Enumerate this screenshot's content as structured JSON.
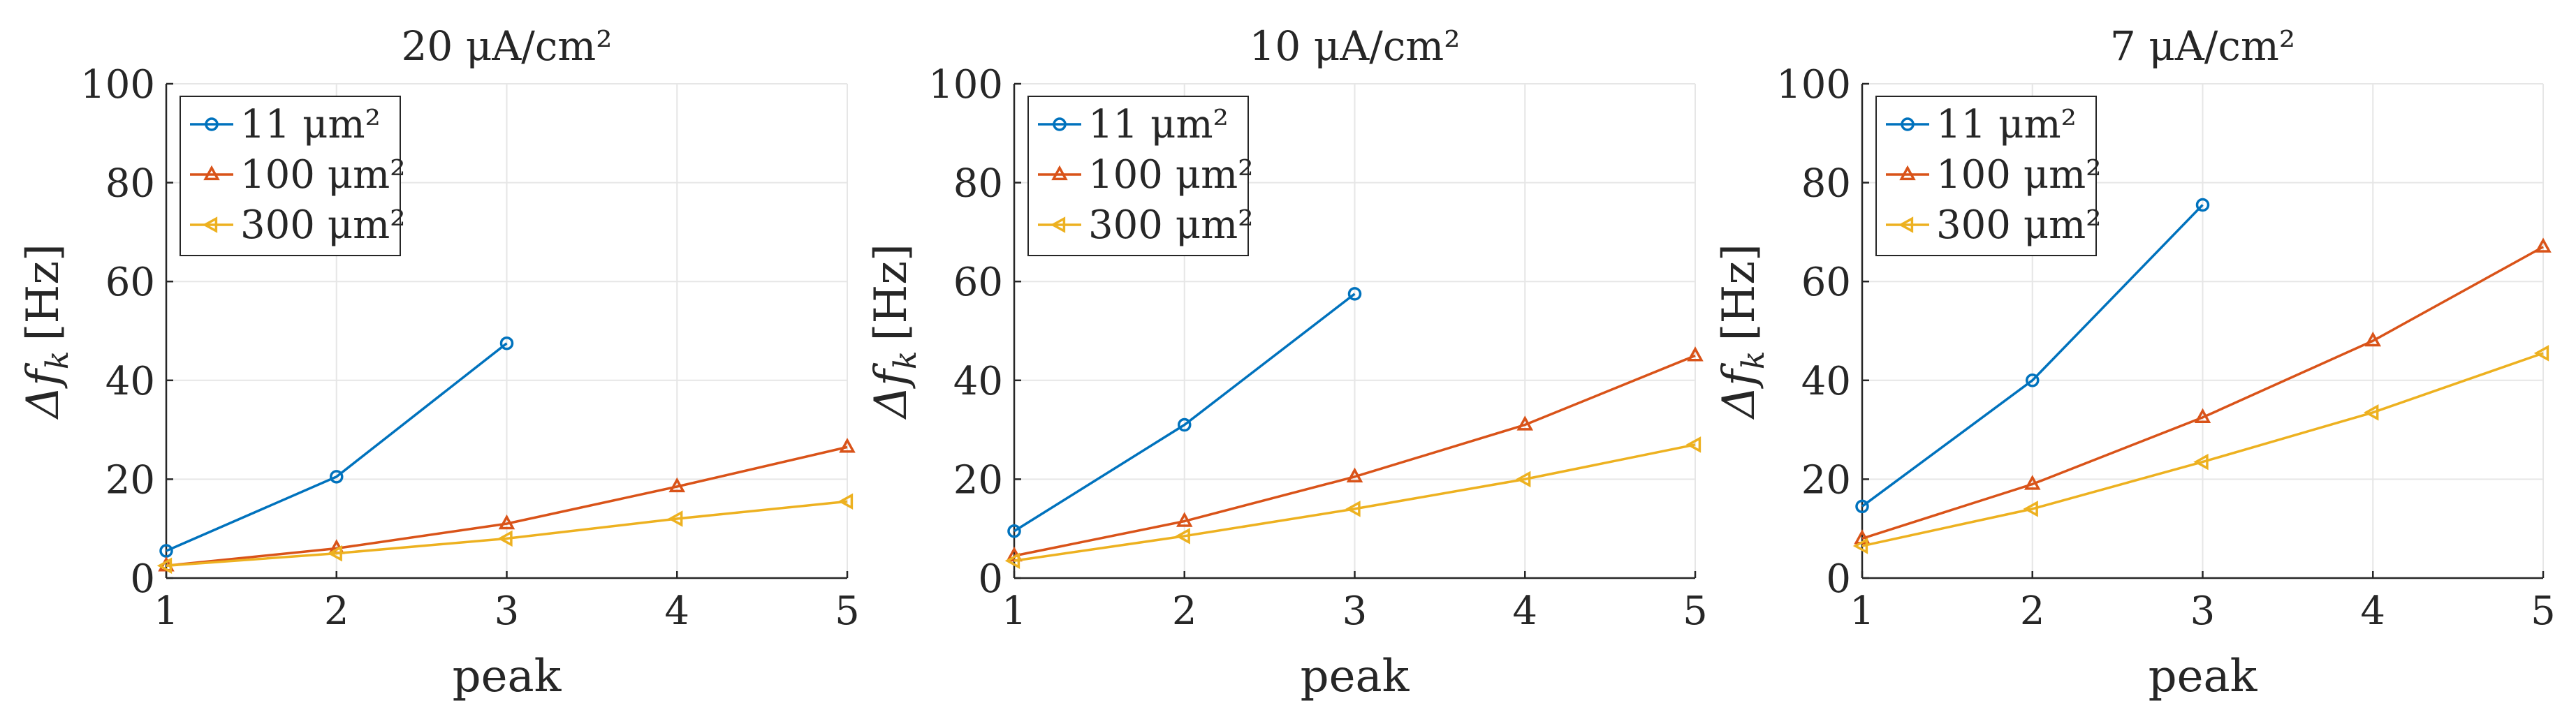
{
  "figure": {
    "ylabel_symbol": "Δf",
    "ylabel_subscript": "k",
    "ylabel_unit": "[Hz]"
  },
  "colors": {
    "series_11": "#0072BD",
    "series_100": "#D95319",
    "series_300": "#EDB120",
    "grid": "#e6e6e6",
    "axis": "#262626"
  },
  "chart_data": [
    {
      "type": "line",
      "title": "20 μA/cm²",
      "xlabel": "peak",
      "ylabel": "Δf_k [Hz]",
      "xlim": [
        1,
        5
      ],
      "ylim": [
        0,
        100
      ],
      "xticks": [
        1,
        2,
        3,
        4,
        5
      ],
      "yticks": [
        0,
        20,
        40,
        60,
        80,
        100
      ],
      "grid": true,
      "legend_position": "top-left",
      "series": [
        {
          "name": "11 μm²",
          "marker": "circle",
          "x": [
            1,
            2,
            3
          ],
          "values": [
            5.5,
            20.5,
            47.5
          ]
        },
        {
          "name": "100 μm²",
          "marker": "triangle-up",
          "x": [
            1,
            2,
            3,
            4,
            5
          ],
          "values": [
            2.5,
            6,
            11,
            18.5,
            26.5
          ]
        },
        {
          "name": "300 μm²",
          "marker": "triangle-left",
          "x": [
            1,
            2,
            3,
            4,
            5
          ],
          "values": [
            2.5,
            5,
            8,
            12,
            15.5
          ]
        }
      ]
    },
    {
      "type": "line",
      "title": "10 μA/cm²",
      "xlabel": "peak",
      "ylabel": "Δf_k [Hz]",
      "xlim": [
        1,
        5
      ],
      "ylim": [
        0,
        100
      ],
      "xticks": [
        1,
        2,
        3,
        4,
        5
      ],
      "yticks": [
        0,
        20,
        40,
        60,
        80,
        100
      ],
      "grid": true,
      "legend_position": "top-left",
      "series": [
        {
          "name": "11 μm²",
          "marker": "circle",
          "x": [
            1,
            2,
            3
          ],
          "values": [
            9.5,
            31,
            57.5
          ]
        },
        {
          "name": "100 μm²",
          "marker": "triangle-up",
          "x": [
            1,
            2,
            3,
            4,
            5
          ],
          "values": [
            4.5,
            11.5,
            20.5,
            31,
            45
          ]
        },
        {
          "name": "300 μm²",
          "marker": "triangle-left",
          "x": [
            1,
            2,
            3,
            4,
            5
          ],
          "values": [
            3.5,
            8.5,
            14,
            20,
            27
          ]
        }
      ]
    },
    {
      "type": "line",
      "title": "7 μA/cm²",
      "xlabel": "peak",
      "ylabel": "Δf_k [Hz]",
      "xlim": [
        1,
        5
      ],
      "ylim": [
        0,
        100
      ],
      "xticks": [
        1,
        2,
        3,
        4,
        5
      ],
      "yticks": [
        0,
        20,
        40,
        60,
        80,
        100
      ],
      "grid": true,
      "legend_position": "top-left",
      "series": [
        {
          "name": "11 μm²",
          "marker": "circle",
          "x": [
            1,
            2,
            3
          ],
          "values": [
            14.5,
            40,
            75.5
          ]
        },
        {
          "name": "100 μm²",
          "marker": "triangle-up",
          "x": [
            1,
            2,
            3,
            4,
            5
          ],
          "values": [
            8,
            19,
            32.5,
            48,
            67
          ]
        },
        {
          "name": "300 μm²",
          "marker": "triangle-left",
          "x": [
            1,
            2,
            3,
            4,
            5
          ],
          "values": [
            6.5,
            14,
            23.5,
            33.5,
            45.5
          ]
        }
      ]
    }
  ]
}
